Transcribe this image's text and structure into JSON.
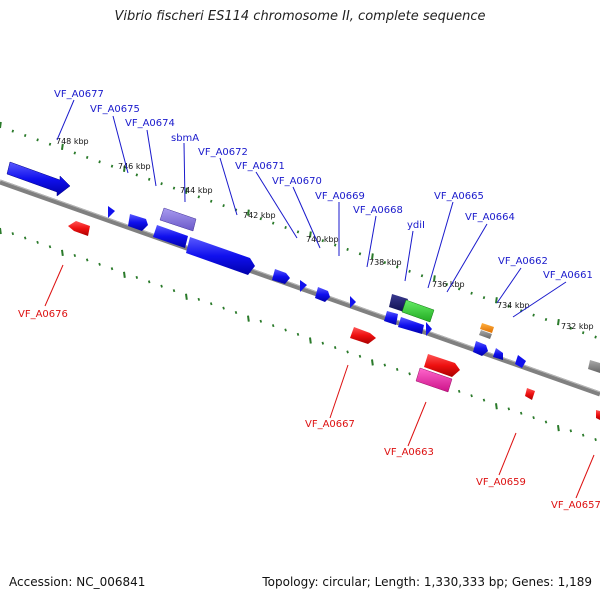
{
  "title": "Vibrio fischeri ES114 chromosome II, complete sequence",
  "accession": "Accession: NC_006841",
  "summary": "Topology: circular; Length: 1,330,333 bp; Genes: 1,189",
  "colors": {
    "forward_label": "#1a1acc",
    "reverse_label": "#dd1111",
    "backbone": "#808080",
    "dots": "#2a7a2a"
  },
  "ticks": [
    "748 kbp",
    "746 kbp",
    "744 kbp",
    "742 kbp",
    "740 kbp",
    "738 kbp",
    "736 kbp",
    "734 kbp",
    "732 kbp"
  ],
  "forward_genes": [
    "VF_A0677",
    "VF_A0675",
    "VF_A0674",
    "sbmA",
    "VF_A0672",
    "VF_A0671",
    "VF_A0670",
    "VF_A0669",
    "VF_A0668",
    "ydiI",
    "VF_A0665",
    "VF_A0664",
    "VF_A0662",
    "VF_A0661"
  ],
  "reverse_genes": [
    "VF_A0676",
    "VF_A0667",
    "VF_A0663",
    "VF_A0659",
    "VF_A0657"
  ]
}
